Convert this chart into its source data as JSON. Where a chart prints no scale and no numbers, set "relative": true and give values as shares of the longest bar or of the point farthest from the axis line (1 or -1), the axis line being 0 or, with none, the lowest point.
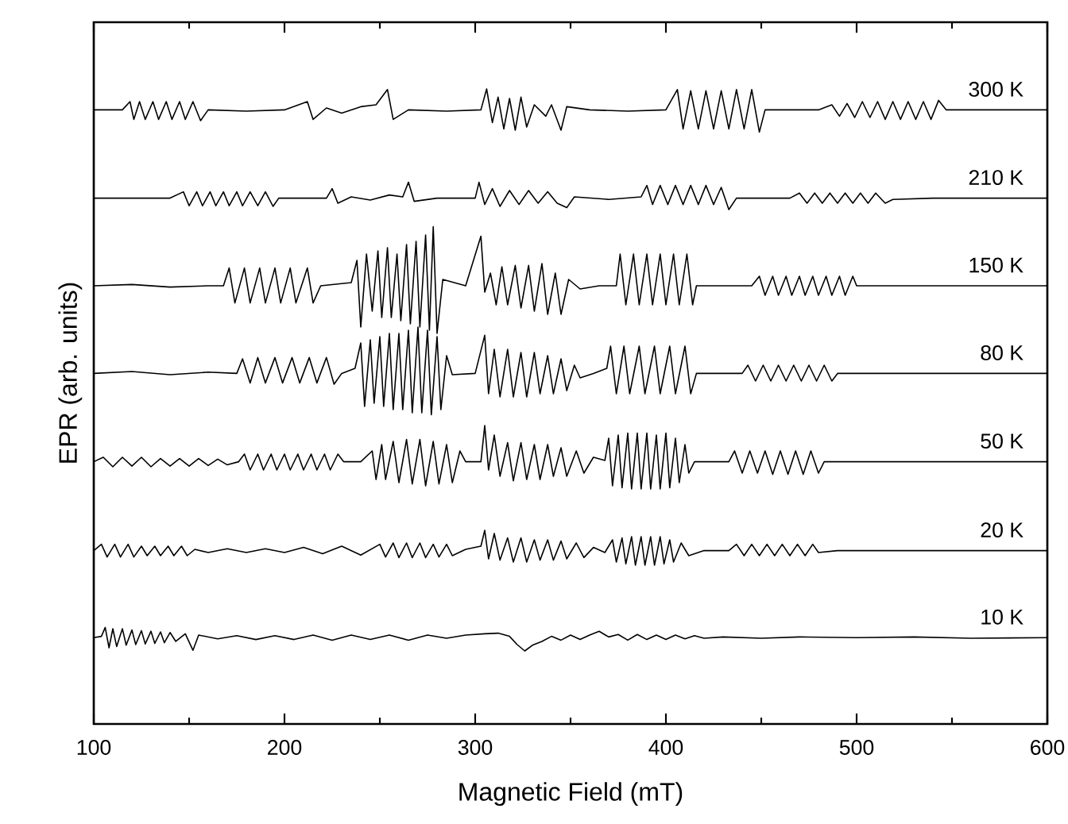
{
  "chart_data": {
    "type": "line",
    "relative": true,
    "xlabel": "Magnetic Field (mT)",
    "ylabel": "EPR (arb. units)",
    "xlim": [
      100,
      600
    ],
    "xticks": [
      100,
      200,
      300,
      400,
      500,
      600
    ],
    "series": [
      {
        "name": "300 K",
        "color": "#000000",
        "x": [
          100,
          115,
          119,
          121,
          124,
          127,
          131,
          134,
          138,
          141,
          145,
          148,
          152,
          156,
          160,
          180,
          200,
          212,
          215,
          222,
          230,
          240,
          248,
          254,
          257,
          265,
          285,
          303,
          306,
          309,
          312,
          315,
          318,
          321,
          324,
          327,
          331,
          337,
          340,
          345,
          348,
          360,
          380,
          400,
          406,
          409,
          413,
          417,
          421,
          425,
          429,
          433,
          437,
          441,
          445,
          449,
          452,
          480,
          487,
          491,
          495,
          499,
          503,
          507,
          511,
          515,
          519,
          523,
          527,
          531,
          535,
          539,
          543,
          547,
          570,
          600
        ],
        "values": [
          0.967,
          0.967,
          0.98,
          0.952,
          0.98,
          0.952,
          0.98,
          0.952,
          0.98,
          0.952,
          0.98,
          0.952,
          0.98,
          0.95,
          0.967,
          0.965,
          0.967,
          0.98,
          0.952,
          0.97,
          0.962,
          0.972,
          0.975,
          0.999,
          0.952,
          0.967,
          0.965,
          0.967,
          1.0,
          0.947,
          0.987,
          0.937,
          0.985,
          0.935,
          0.987,
          0.94,
          0.975,
          0.957,
          0.975,
          0.935,
          0.972,
          0.967,
          0.965,
          0.967,
          0.999,
          0.937,
          0.997,
          0.937,
          0.997,
          0.937,
          0.997,
          0.937,
          0.999,
          0.937,
          0.999,
          0.932,
          0.967,
          0.967,
          0.975,
          0.957,
          0.977,
          0.955,
          0.98,
          0.955,
          0.98,
          0.952,
          0.98,
          0.952,
          0.98,
          0.952,
          0.98,
          0.952,
          0.982,
          0.967,
          0.967,
          0.967
        ]
      },
      {
        "name": "210 K",
        "color": "#000000",
        "x": [
          100,
          140,
          147,
          150,
          154,
          157,
          161,
          164,
          168,
          171,
          175,
          178,
          182,
          186,
          190,
          194,
          197,
          222,
          225,
          228,
          235,
          245,
          255,
          262,
          265,
          268,
          280,
          300,
          302,
          305,
          309,
          313,
          318,
          323,
          328,
          333,
          338,
          343,
          348,
          352,
          370,
          387,
          390,
          393,
          397,
          401,
          405,
          409,
          413,
          417,
          421,
          425,
          429,
          433,
          437,
          465,
          470,
          474,
          478,
          482,
          486,
          490,
          494,
          498,
          502,
          506,
          510,
          515,
          519,
          540,
          600
        ],
        "values": [
          0.828,
          0.828,
          0.838,
          0.816,
          0.838,
          0.816,
          0.838,
          0.816,
          0.838,
          0.816,
          0.838,
          0.816,
          0.838,
          0.816,
          0.838,
          0.815,
          0.828,
          0.828,
          0.843,
          0.82,
          0.83,
          0.825,
          0.833,
          0.83,
          0.853,
          0.823,
          0.828,
          0.828,
          0.853,
          0.818,
          0.843,
          0.815,
          0.84,
          0.818,
          0.84,
          0.82,
          0.838,
          0.82,
          0.813,
          0.83,
          0.826,
          0.83,
          0.848,
          0.818,
          0.848,
          0.818,
          0.848,
          0.818,
          0.848,
          0.818,
          0.848,
          0.818,
          0.845,
          0.81,
          0.828,
          0.828,
          0.836,
          0.82,
          0.836,
          0.82,
          0.836,
          0.82,
          0.836,
          0.82,
          0.836,
          0.82,
          0.836,
          0.82,
          0.826,
          0.828,
          0.828
        ]
      },
      {
        "name": "150 K",
        "color": "#000000",
        "x": [
          100,
          120,
          140,
          160,
          168,
          171,
          174,
          179,
          182,
          187,
          190,
          195,
          198,
          203,
          206,
          212,
          215,
          219,
          235,
          238,
          240,
          243,
          246,
          249,
          251,
          254,
          256,
          259,
          261,
          264,
          266,
          269,
          271,
          274,
          276,
          278,
          280,
          283,
          295,
          303,
          305,
          308,
          311,
          314,
          317,
          321,
          324,
          328,
          331,
          335,
          338,
          342,
          345,
          349,
          355,
          365,
          374,
          376,
          379,
          383,
          386,
          390,
          393,
          397,
          400,
          404,
          407,
          411,
          414,
          416,
          445,
          449,
          452,
          456,
          459,
          463,
          466,
          470,
          473,
          477,
          480,
          484,
          487,
          491,
          494,
          498,
          500,
          600
        ],
        "values": [
          0.69,
          0.692,
          0.688,
          0.69,
          0.69,
          0.718,
          0.663,
          0.718,
          0.663,
          0.718,
          0.663,
          0.718,
          0.663,
          0.718,
          0.663,
          0.718,
          0.663,
          0.69,
          0.695,
          0.73,
          0.625,
          0.74,
          0.65,
          0.745,
          0.64,
          0.75,
          0.64,
          0.74,
          0.635,
          0.755,
          0.63,
          0.76,
          0.625,
          0.77,
          0.62,
          0.783,
          0.615,
          0.7,
          0.69,
          0.768,
          0.68,
          0.71,
          0.66,
          0.72,
          0.66,
          0.722,
          0.655,
          0.722,
          0.65,
          0.725,
          0.645,
          0.71,
          0.645,
          0.7,
          0.685,
          0.69,
          0.69,
          0.74,
          0.66,
          0.74,
          0.66,
          0.74,
          0.66,
          0.74,
          0.66,
          0.74,
          0.66,
          0.74,
          0.66,
          0.69,
          0.69,
          0.705,
          0.675,
          0.705,
          0.675,
          0.705,
          0.675,
          0.705,
          0.675,
          0.705,
          0.675,
          0.705,
          0.675,
          0.705,
          0.675,
          0.705,
          0.69,
          0.69
        ]
      },
      {
        "name": "80 K",
        "color": "#000000",
        "x": [
          100,
          120,
          140,
          160,
          175,
          178,
          182,
          186,
          190,
          195,
          199,
          204,
          208,
          213,
          217,
          222,
          226,
          230,
          237,
          240,
          242,
          245,
          247,
          250,
          252,
          255,
          257,
          260,
          262,
          265,
          267,
          270,
          272,
          275,
          277,
          280,
          282,
          285,
          288,
          300,
          305,
          307,
          310,
          313,
          317,
          320,
          324,
          327,
          331,
          334,
          338,
          341,
          345,
          348,
          352,
          355,
          362,
          369,
          371,
          374,
          378,
          381,
          386,
          389,
          394,
          397,
          402,
          405,
          410,
          413,
          416,
          440,
          443,
          447,
          451,
          455,
          459,
          463,
          467,
          471,
          475,
          479,
          483,
          487,
          490,
          600
        ],
        "values": [
          0.552,
          0.555,
          0.55,
          0.554,
          0.552,
          0.575,
          0.537,
          0.577,
          0.537,
          0.577,
          0.537,
          0.577,
          0.537,
          0.577,
          0.537,
          0.577,
          0.535,
          0.552,
          0.56,
          0.6,
          0.5,
          0.605,
          0.505,
          0.61,
          0.5,
          0.615,
          0.495,
          0.615,
          0.495,
          0.62,
          0.49,
          0.625,
          0.49,
          0.62,
          0.487,
          0.61,
          0.495,
          0.58,
          0.55,
          0.552,
          0.612,
          0.52,
          0.59,
          0.515,
          0.59,
          0.515,
          0.585,
          0.515,
          0.585,
          0.52,
          0.58,
          0.52,
          0.575,
          0.525,
          0.565,
          0.545,
          0.552,
          0.56,
          0.595,
          0.52,
          0.595,
          0.52,
          0.595,
          0.52,
          0.595,
          0.52,
          0.595,
          0.52,
          0.595,
          0.52,
          0.552,
          0.552,
          0.565,
          0.54,
          0.565,
          0.54,
          0.565,
          0.54,
          0.565,
          0.54,
          0.565,
          0.54,
          0.565,
          0.54,
          0.552,
          0.552
        ]
      },
      {
        "name": "50 K",
        "color": "#000000",
        "x": [
          100,
          105,
          110,
          115,
          120,
          125,
          130,
          135,
          140,
          145,
          150,
          155,
          160,
          165,
          170,
          176,
          179,
          182,
          186,
          189,
          193,
          196,
          200,
          203,
          207,
          210,
          214,
          217,
          221,
          224,
          228,
          231,
          240,
          246,
          248,
          251,
          253,
          257,
          260,
          264,
          267,
          271,
          274,
          278,
          281,
          285,
          288,
          292,
          295,
          303,
          305,
          307,
          310,
          313,
          317,
          320,
          324,
          327,
          331,
          334,
          338,
          341,
          345,
          348,
          353,
          357,
          362,
          368,
          370,
          372,
          375,
          377,
          380,
          382,
          385,
          387,
          390,
          392,
          395,
          397,
          400,
          402,
          405,
          407,
          410,
          412,
          415,
          433,
          436,
          440,
          444,
          448,
          452,
          456,
          460,
          464,
          468,
          472,
          476,
          480,
          483,
          600
        ],
        "values": [
          0.413,
          0.42,
          0.405,
          0.42,
          0.406,
          0.42,
          0.405,
          0.418,
          0.406,
          0.418,
          0.406,
          0.418,
          0.407,
          0.417,
          0.408,
          0.413,
          0.425,
          0.4,
          0.425,
          0.4,
          0.425,
          0.4,
          0.425,
          0.4,
          0.425,
          0.4,
          0.425,
          0.4,
          0.425,
          0.4,
          0.425,
          0.413,
          0.413,
          0.43,
          0.385,
          0.44,
          0.385,
          0.445,
          0.38,
          0.448,
          0.378,
          0.448,
          0.375,
          0.445,
          0.378,
          0.44,
          0.38,
          0.43,
          0.413,
          0.413,
          0.47,
          0.4,
          0.455,
          0.39,
          0.443,
          0.383,
          0.443,
          0.385,
          0.44,
          0.385,
          0.44,
          0.39,
          0.435,
          0.39,
          0.43,
          0.395,
          0.42,
          0.415,
          0.45,
          0.375,
          0.455,
          0.372,
          0.458,
          0.37,
          0.458,
          0.37,
          0.458,
          0.37,
          0.455,
          0.37,
          0.458,
          0.372,
          0.45,
          0.38,
          0.44,
          0.395,
          0.413,
          0.413,
          0.43,
          0.395,
          0.43,
          0.395,
          0.43,
          0.393,
          0.43,
          0.393,
          0.43,
          0.393,
          0.43,
          0.395,
          0.413,
          0.413
        ]
      },
      {
        "name": "20 K",
        "color": "#000000",
        "x": [
          100,
          104,
          107,
          111,
          114,
          118,
          121,
          125,
          128,
          132,
          135,
          139,
          142,
          146,
          149,
          153,
          160,
          170,
          180,
          190,
          200,
          210,
          220,
          230,
          240,
          250,
          253,
          257,
          260,
          264,
          267,
          271,
          274,
          278,
          281,
          285,
          288,
          295,
          303,
          305,
          307,
          310,
          313,
          317,
          320,
          324,
          327,
          331,
          334,
          338,
          341,
          345,
          348,
          353,
          357,
          362,
          368,
          372,
          374,
          377,
          379,
          382,
          384,
          387,
          389,
          392,
          394,
          397,
          399,
          402,
          404,
          408,
          412,
          420,
          433,
          437,
          441,
          445,
          449,
          453,
          457,
          461,
          465,
          469,
          473,
          477,
          480,
          490,
          600
        ],
        "values": [
          0.273,
          0.283,
          0.263,
          0.283,
          0.263,
          0.283,
          0.263,
          0.28,
          0.265,
          0.28,
          0.265,
          0.28,
          0.265,
          0.28,
          0.265,
          0.275,
          0.27,
          0.276,
          0.27,
          0.276,
          0.27,
          0.278,
          0.268,
          0.28,
          0.266,
          0.283,
          0.263,
          0.285,
          0.262,
          0.285,
          0.262,
          0.285,
          0.262,
          0.283,
          0.263,
          0.283,
          0.265,
          0.275,
          0.28,
          0.305,
          0.26,
          0.3,
          0.258,
          0.293,
          0.255,
          0.293,
          0.255,
          0.29,
          0.258,
          0.29,
          0.258,
          0.288,
          0.26,
          0.285,
          0.262,
          0.278,
          0.27,
          0.29,
          0.255,
          0.293,
          0.252,
          0.295,
          0.25,
          0.295,
          0.25,
          0.295,
          0.25,
          0.295,
          0.252,
          0.29,
          0.255,
          0.285,
          0.265,
          0.273,
          0.273,
          0.283,
          0.265,
          0.283,
          0.265,
          0.283,
          0.265,
          0.283,
          0.265,
          0.283,
          0.265,
          0.283,
          0.27,
          0.273,
          0.273
        ]
      },
      {
        "name": "10 K",
        "color": "#000000",
        "x": [
          100,
          104,
          106,
          108,
          110,
          112,
          115,
          117,
          120,
          122,
          125,
          127,
          130,
          132,
          135,
          137,
          140,
          143,
          148,
          152,
          155,
          165,
          175,
          185,
          195,
          205,
          215,
          225,
          235,
          245,
          255,
          265,
          275,
          285,
          295,
          305,
          312,
          318,
          322,
          326,
          330,
          335,
          340,
          345,
          350,
          355,
          360,
          365,
          370,
          375,
          380,
          385,
          390,
          395,
          400,
          405,
          410,
          415,
          420,
          430,
          450,
          470,
          500,
          530,
          560,
          600
        ],
        "values": [
          0.136,
          0.138,
          0.152,
          0.12,
          0.15,
          0.122,
          0.15,
          0.124,
          0.148,
          0.125,
          0.147,
          0.126,
          0.146,
          0.127,
          0.145,
          0.128,
          0.144,
          0.13,
          0.142,
          0.116,
          0.14,
          0.134,
          0.139,
          0.133,
          0.139,
          0.133,
          0.14,
          0.132,
          0.14,
          0.133,
          0.14,
          0.132,
          0.14,
          0.135,
          0.14,
          0.142,
          0.143,
          0.138,
          0.125,
          0.115,
          0.124,
          0.13,
          0.138,
          0.132,
          0.14,
          0.133,
          0.14,
          0.146,
          0.137,
          0.141,
          0.132,
          0.141,
          0.133,
          0.14,
          0.133,
          0.14,
          0.134,
          0.139,
          0.135,
          0.137,
          0.135,
          0.137,
          0.136,
          0.137,
          0.135,
          0.136
        ]
      }
    ]
  }
}
